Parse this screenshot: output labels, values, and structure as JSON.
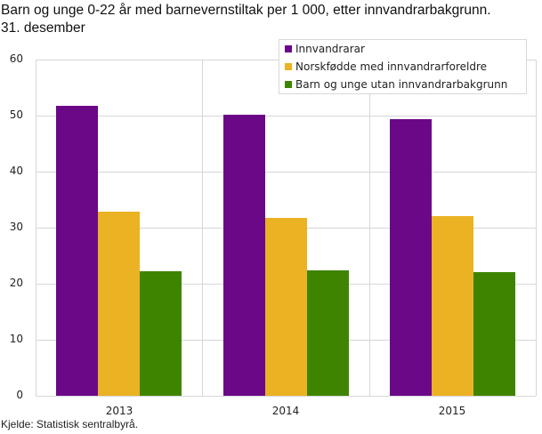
{
  "title_line1": "Barn og unge 0-22 år med barnevernstiltak per 1 000, etter innvandrarbakgrunn.",
  "title_line2": "31. desember",
  "source": "Kjelde: Statistisk sentralbyrå.",
  "colors": {
    "innvandrarar": "#6a0888",
    "norskfodde": "#ebb323",
    "utan": "#3e8400",
    "grid": "#d6d6d6"
  },
  "legend": [
    {
      "label": "Innvandrarar",
      "color": "#6a0888"
    },
    {
      "label": "Norskfødde med innvandrarforeldre",
      "color": "#ebb323"
    },
    {
      "label": "Barn og unge utan innvandrarbakgrunn",
      "color": "#3e8400"
    }
  ],
  "yticks": [
    "0",
    "10",
    "20",
    "30",
    "40",
    "50",
    "60"
  ],
  "chart_data": {
    "type": "bar",
    "title": "Barn og unge 0-22 år med barnevernstiltak per 1 000, etter innvandrarbakgrunn. 31. desember",
    "xlabel": "",
    "ylabel": "",
    "categories": [
      "2013",
      "2014",
      "2015"
    ],
    "series": [
      {
        "name": "Innvandrarar",
        "color": "#6a0888",
        "values": [
          51.8,
          50.2,
          49.3
        ]
      },
      {
        "name": "Norskfødde med innvandrarforeldre",
        "color": "#ebb323",
        "values": [
          32.9,
          31.7,
          32.0
        ]
      },
      {
        "name": "Barn og unge utan innvandrarbakgrunn",
        "color": "#3e8400",
        "values": [
          22.2,
          22.4,
          22.1
        ]
      }
    ],
    "ylim": [
      0,
      60
    ],
    "yticks": [
      0,
      10,
      20,
      30,
      40,
      50,
      60
    ],
    "grid": true,
    "legend_position": "top-right",
    "source": "Kjelde: Statistisk sentralbyrå."
  }
}
